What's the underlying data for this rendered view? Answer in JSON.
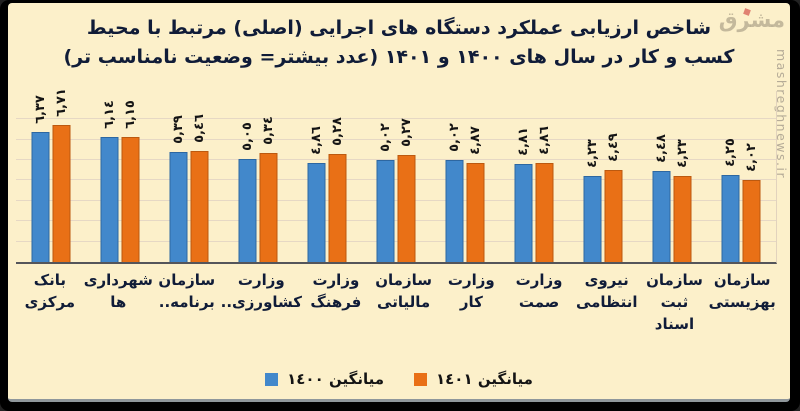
{
  "title": {
    "line1": "شاخص ارزیابی عملکرد دستگاه های اجرایی (اصلی) مرتبط با محیط",
    "line2": "کسب و کار در سال های ۱۴۰۰ و ۱۴۰۱ (عدد بیشتر= وضعیت نامناسب تر)"
  },
  "watermark": {
    "site": "mashreghnews.ir",
    "logo_text": "مشرق"
  },
  "legend": [
    {
      "label": "میانگین ١٤٠٠",
      "color": "#4288cb"
    },
    {
      "label": "میانگین ١٤٠١",
      "color": "#e97016"
    }
  ],
  "colors": {
    "background": "#FCF0CA",
    "frame": "#000000",
    "bar_1400": "#4288cb",
    "bar_1401": "#e97016",
    "gridline": "#e6d8c4",
    "text": "#101c38"
  },
  "chart_data": {
    "type": "bar",
    "title": "شاخص ارزیابی عملکرد دستگاه های اجرایی (اصلی) مرتبط با محیط کسب و کار در سال های ۱۴۰۰ و ۱۴۰۱ (عدد بیشتر= وضعیت نامناسب تر)",
    "categories": [
      "بانک مرکزی",
      "شهرداری ها",
      "سازمان برنامه..",
      "وزارت ..کشاورزی",
      "وزارت فرهنگ",
      "سازمان مالیاتی",
      "وزارت کار",
      "وزارت صمت",
      "نیروی انتظامی",
      "سازمان ثبت اسناد",
      "سازمان بهزیستی"
    ],
    "category_lines": [
      [
        "بانک",
        "مرکزی"
      ],
      [
        "شهرداری",
        "ها"
      ],
      [
        "سازمان",
        "برنامه.."
      ],
      [
        "وزارت",
        "کشاورزی.."
      ],
      [
        "وزارت",
        "فرهنگ"
      ],
      [
        "سازمان",
        "مالیاتی"
      ],
      [
        "وزارت کار"
      ],
      [
        "وزارت",
        "صمت"
      ],
      [
        "نیروی",
        "انتظامی"
      ],
      [
        "سازمان",
        "ثبت",
        "اسناد"
      ],
      [
        "سازمان",
        "بهزیستی"
      ]
    ],
    "series": [
      {
        "name": "میانگین ١٤٠٠",
        "color": "#4288cb",
        "values": [
          6.37,
          6.14,
          5.39,
          5.05,
          4.86,
          5.02,
          5.02,
          4.81,
          4.23,
          4.48,
          4.25
        ],
        "value_labels": [
          "٦,٣٧",
          "٦,١٤",
          "٥,٣٩",
          "٥,٠٥",
          "٤,٨٦",
          "٥,٠٢",
          "٥,٠٢",
          "٤,٨١",
          "٤,٢٣",
          "٤,٤٨",
          "٤,٢٥"
        ]
      },
      {
        "name": "میانگین ١٤٠١",
        "color": "#e97016",
        "values": [
          6.71,
          6.15,
          5.46,
          5.34,
          5.28,
          5.27,
          4.87,
          4.86,
          4.49,
          4.23,
          4.02
        ],
        "value_labels": [
          "٦,٧١",
          "٦,١٥",
          "٥,٤٦",
          "٥,٣٤",
          "٥,٢٨",
          "٥,٢٧",
          "٤,٨٧",
          "٤,٨٦",
          "٤,٤٩",
          "٤,٢٣",
          "٤,٠٢"
        ]
      }
    ],
    "ylim": [
      0,
      7
    ],
    "grid": true,
    "value_label_rotation": 90,
    "legend_position": "bottom"
  }
}
